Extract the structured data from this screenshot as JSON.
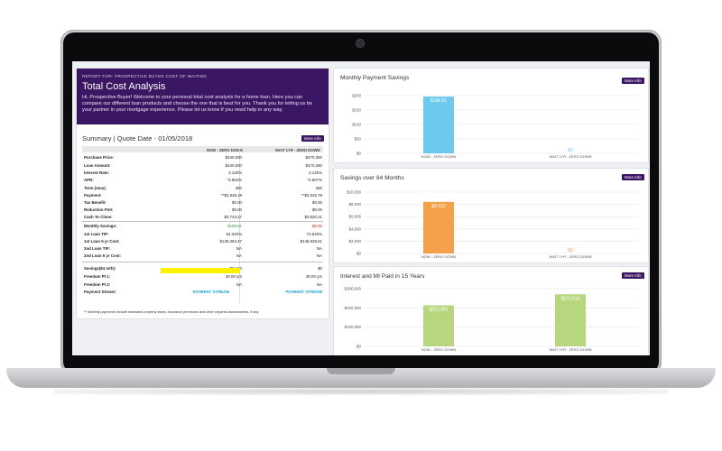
{
  "summary": {
    "report_for": "REPORT FOR: PROSPECTIVE BUYER COST OF WAITING",
    "title": "Total Cost Analysis",
    "intro": "Hi, Prospective Buyer! Welcome to your personal total cost analysis for a home loan. Here you can compare our different loan products and choose the one that is best for you. Thank you for letting us be your partner in your mortgage experience. Please let us know if you need help in any way.",
    "heading": "Summary  |  Quote Date - 01/05/2018",
    "more_info": "More Info",
    "columns": [
      "NOW - ZERO DOWN",
      "WAIT 1YR - ZERO DOWN"
    ],
    "rows": [
      {
        "label": "Purchase Price:",
        "v1": "$440,000",
        "v2": "$470,360"
      },
      {
        "label": "Loan Amount:",
        "v1": "$440,000",
        "v2": "$470,360"
      },
      {
        "label": "Interest Rate:",
        "v1": "3.125%",
        "v2": "3.125%"
      },
      {
        "label": "APR:",
        "v1": "*3.854%",
        "v2": "*4.607%"
      },
      {
        "label": "Term (mos):",
        "v1": "360",
        "v2": "360"
      },
      {
        "label": "Payment:",
        "v1": "**$2,849.18",
        "v2": "**$3,045.79"
      },
      {
        "label": "Tax Benefit:",
        "v1": "$0.00",
        "v2": "$0.00"
      },
      {
        "label": "Reduction Pmt:",
        "v1": "$0.00",
        "v2": "$0.00"
      },
      {
        "label": "Cash To Close:",
        "v1": "$3,743.27",
        "v2": "$3,820.21"
      },
      {
        "label": "Monthly Savings:",
        "v1": "$196.61",
        "v2": "$0.00"
      },
      {
        "label": "1st Loan TIP:",
        "v1": "54.340%",
        "v2": "72.540%"
      },
      {
        "label": "1st Loan 5 yr Cost:",
        "v1": "$130,494.47",
        "v2": "$148,938.61"
      },
      {
        "label": "2nd Loan TIP:",
        "v1": "NA",
        "v2": "NA"
      },
      {
        "label": "2nd Loan 5 yr Cost:",
        "v1": "NA",
        "v2": "NA"
      },
      {
        "label": "Savings(84 mth):",
        "v1": "$8,410",
        "v2": "$0"
      },
      {
        "label": "Freedom Pt 1:",
        "v1": "30.00 yrs",
        "v2": "30.00 yrs"
      },
      {
        "label": "Freedom Pt 2:",
        "v1": "NA",
        "v2": "NA"
      },
      {
        "label": "Payment Stream:",
        "v1": "PAYMENT STREAM",
        "v2": "PAYMENT STREAM"
      }
    ],
    "footnote": "** Monthly payments include estimated property taxes, insurance premiums and other required assessments, if any."
  },
  "chart_data": [
    {
      "type": "bar",
      "title": "Monthly Payment Savings",
      "more_info": "More Info",
      "categories": [
        "NOW - ZERO DOWN",
        "WAIT 1YR - ZERO DOWN"
      ],
      "values": [
        196.61,
        0
      ],
      "value_labels": [
        "$196.61",
        "$0"
      ],
      "ticks": [
        "$0",
        "$50",
        "$100",
        "$150",
        "$200"
      ],
      "ylim": [
        0,
        200
      ],
      "colors": [
        "#6ec9ef",
        "#6ec9ef"
      ]
    },
    {
      "type": "bar",
      "title": "Savings over 84 Months",
      "more_info": "More Info",
      "categories": [
        "NOW - ZERO DOWN",
        "WAIT 1YR - ZERO DOWN"
      ],
      "values": [
        8410,
        0
      ],
      "value_labels": [
        "$8,410",
        "$0"
      ],
      "ticks": [
        "$0",
        "$2,000",
        "$4,000",
        "$6,000",
        "$8,000",
        "$10,000"
      ],
      "ylim": [
        0,
        10000
      ],
      "colors": [
        "#f5a04a",
        "#f5a04a"
      ]
    },
    {
      "type": "bar",
      "title": "Interest and MI Paid in 15 Years",
      "more_info": "More Info",
      "categories": [
        "NOW - ZERO DOWN",
        "WAIT 1YR - ZERO DOWN"
      ],
      "values": [
        213391,
        270614
      ],
      "value_labels": [
        "$213,391",
        "$270,614"
      ],
      "ticks": [
        "$0",
        "$100,000",
        "$200,000",
        "$300,000"
      ],
      "ylim": [
        0,
        300000
      ],
      "colors": [
        "#b7d77e",
        "#b7d77e"
      ]
    }
  ]
}
